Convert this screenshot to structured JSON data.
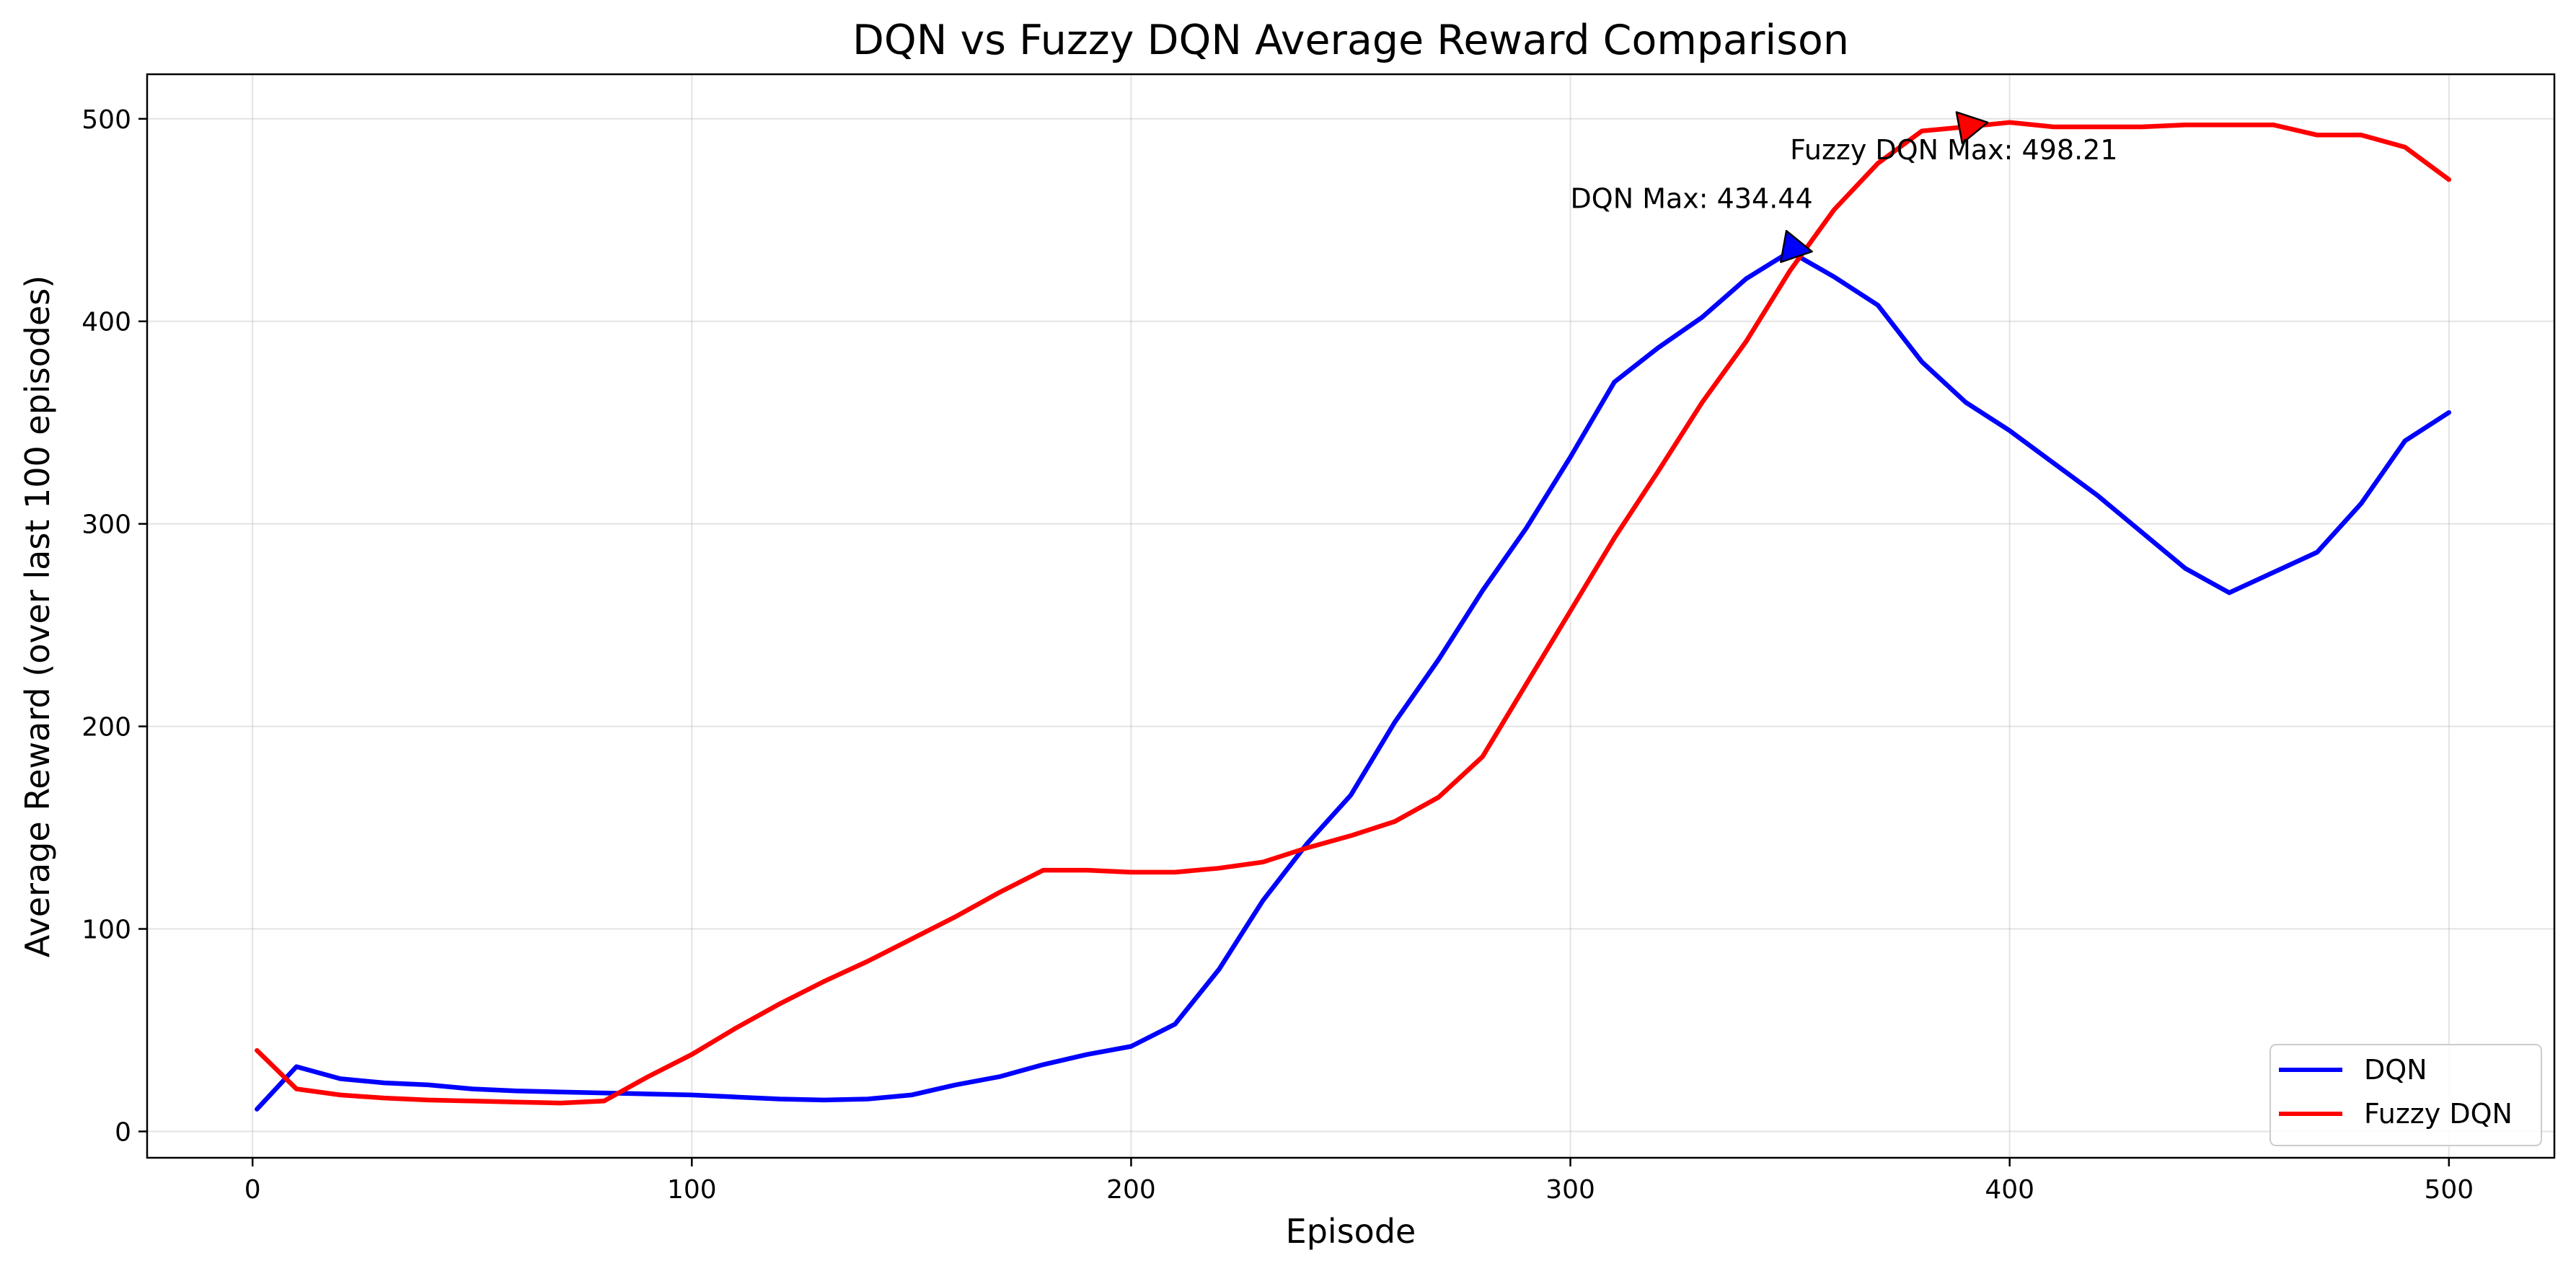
{
  "chart_data": {
    "type": "line",
    "title": "DQN vs Fuzzy DQN Average Reward Comparison",
    "xlabel": "Episode",
    "ylabel": "Average Reward (over last 100 episodes)",
    "xlim": [
      -24,
      524
    ],
    "ylim": [
      -13,
      522
    ],
    "xticks": [
      0,
      100,
      200,
      300,
      400,
      500
    ],
    "yticks": [
      0,
      100,
      200,
      300,
      400,
      500
    ],
    "grid": true,
    "legend_position": "lower-right",
    "series": [
      {
        "name": "DQN",
        "color": "#0000ff",
        "x": [
          1,
          10,
          20,
          30,
          40,
          50,
          60,
          70,
          80,
          90,
          100,
          110,
          120,
          130,
          140,
          150,
          160,
          170,
          180,
          190,
          200,
          210,
          220,
          230,
          240,
          250,
          260,
          270,
          280,
          290,
          300,
          310,
          320,
          330,
          340,
          350,
          360,
          370,
          380,
          390,
          400,
          410,
          420,
          430,
          440,
          450,
          460,
          470,
          480,
          490,
          500
        ],
        "y": [
          11,
          32,
          26,
          24,
          23,
          21,
          20,
          19.5,
          19,
          18.5,
          18,
          17,
          16,
          15.5,
          16,
          18,
          23,
          27,
          33,
          38,
          42,
          53,
          80,
          114,
          142,
          166,
          202,
          233,
          267,
          298,
          333,
          370,
          387,
          402,
          421,
          434.44,
          422,
          408,
          380,
          360,
          346,
          330,
          314,
          296,
          278,
          266,
          276,
          286,
          310,
          341,
          355
        ]
      },
      {
        "name": "Fuzzy DQN",
        "color": "#ff0000",
        "x": [
          1,
          10,
          20,
          30,
          40,
          50,
          60,
          70,
          80,
          90,
          100,
          110,
          120,
          130,
          140,
          150,
          160,
          170,
          180,
          190,
          200,
          210,
          220,
          230,
          240,
          250,
          260,
          270,
          280,
          290,
          300,
          310,
          320,
          330,
          340,
          350,
          360,
          370,
          380,
          390,
          400,
          410,
          420,
          430,
          440,
          450,
          460,
          470,
          480,
          490,
          500
        ],
        "y": [
          40,
          21,
          18,
          16.5,
          15.5,
          15,
          14.5,
          14,
          15,
          27,
          38,
          51,
          63,
          74,
          84,
          95,
          106,
          118,
          129,
          129,
          128,
          128,
          130,
          133,
          140,
          146,
          153,
          165,
          185,
          221,
          257,
          293,
          326,
          360,
          390,
          425,
          455,
          478,
          494,
          496,
          498.21,
          496,
          496,
          496,
          497,
          497,
          497,
          492,
          492,
          486,
          470
        ]
      }
    ],
    "annotations": [
      {
        "text": "DQN Max: 434.44",
        "point": [
          355,
          434.44
        ],
        "text_pos": [
          300,
          456
        ],
        "color": "#0000ff"
      },
      {
        "text": "Fuzzy DQN Max: 498.21",
        "point": [
          395,
          498.21
        ],
        "text_pos": [
          350,
          480
        ],
        "color": "#ff0000"
      }
    ]
  }
}
